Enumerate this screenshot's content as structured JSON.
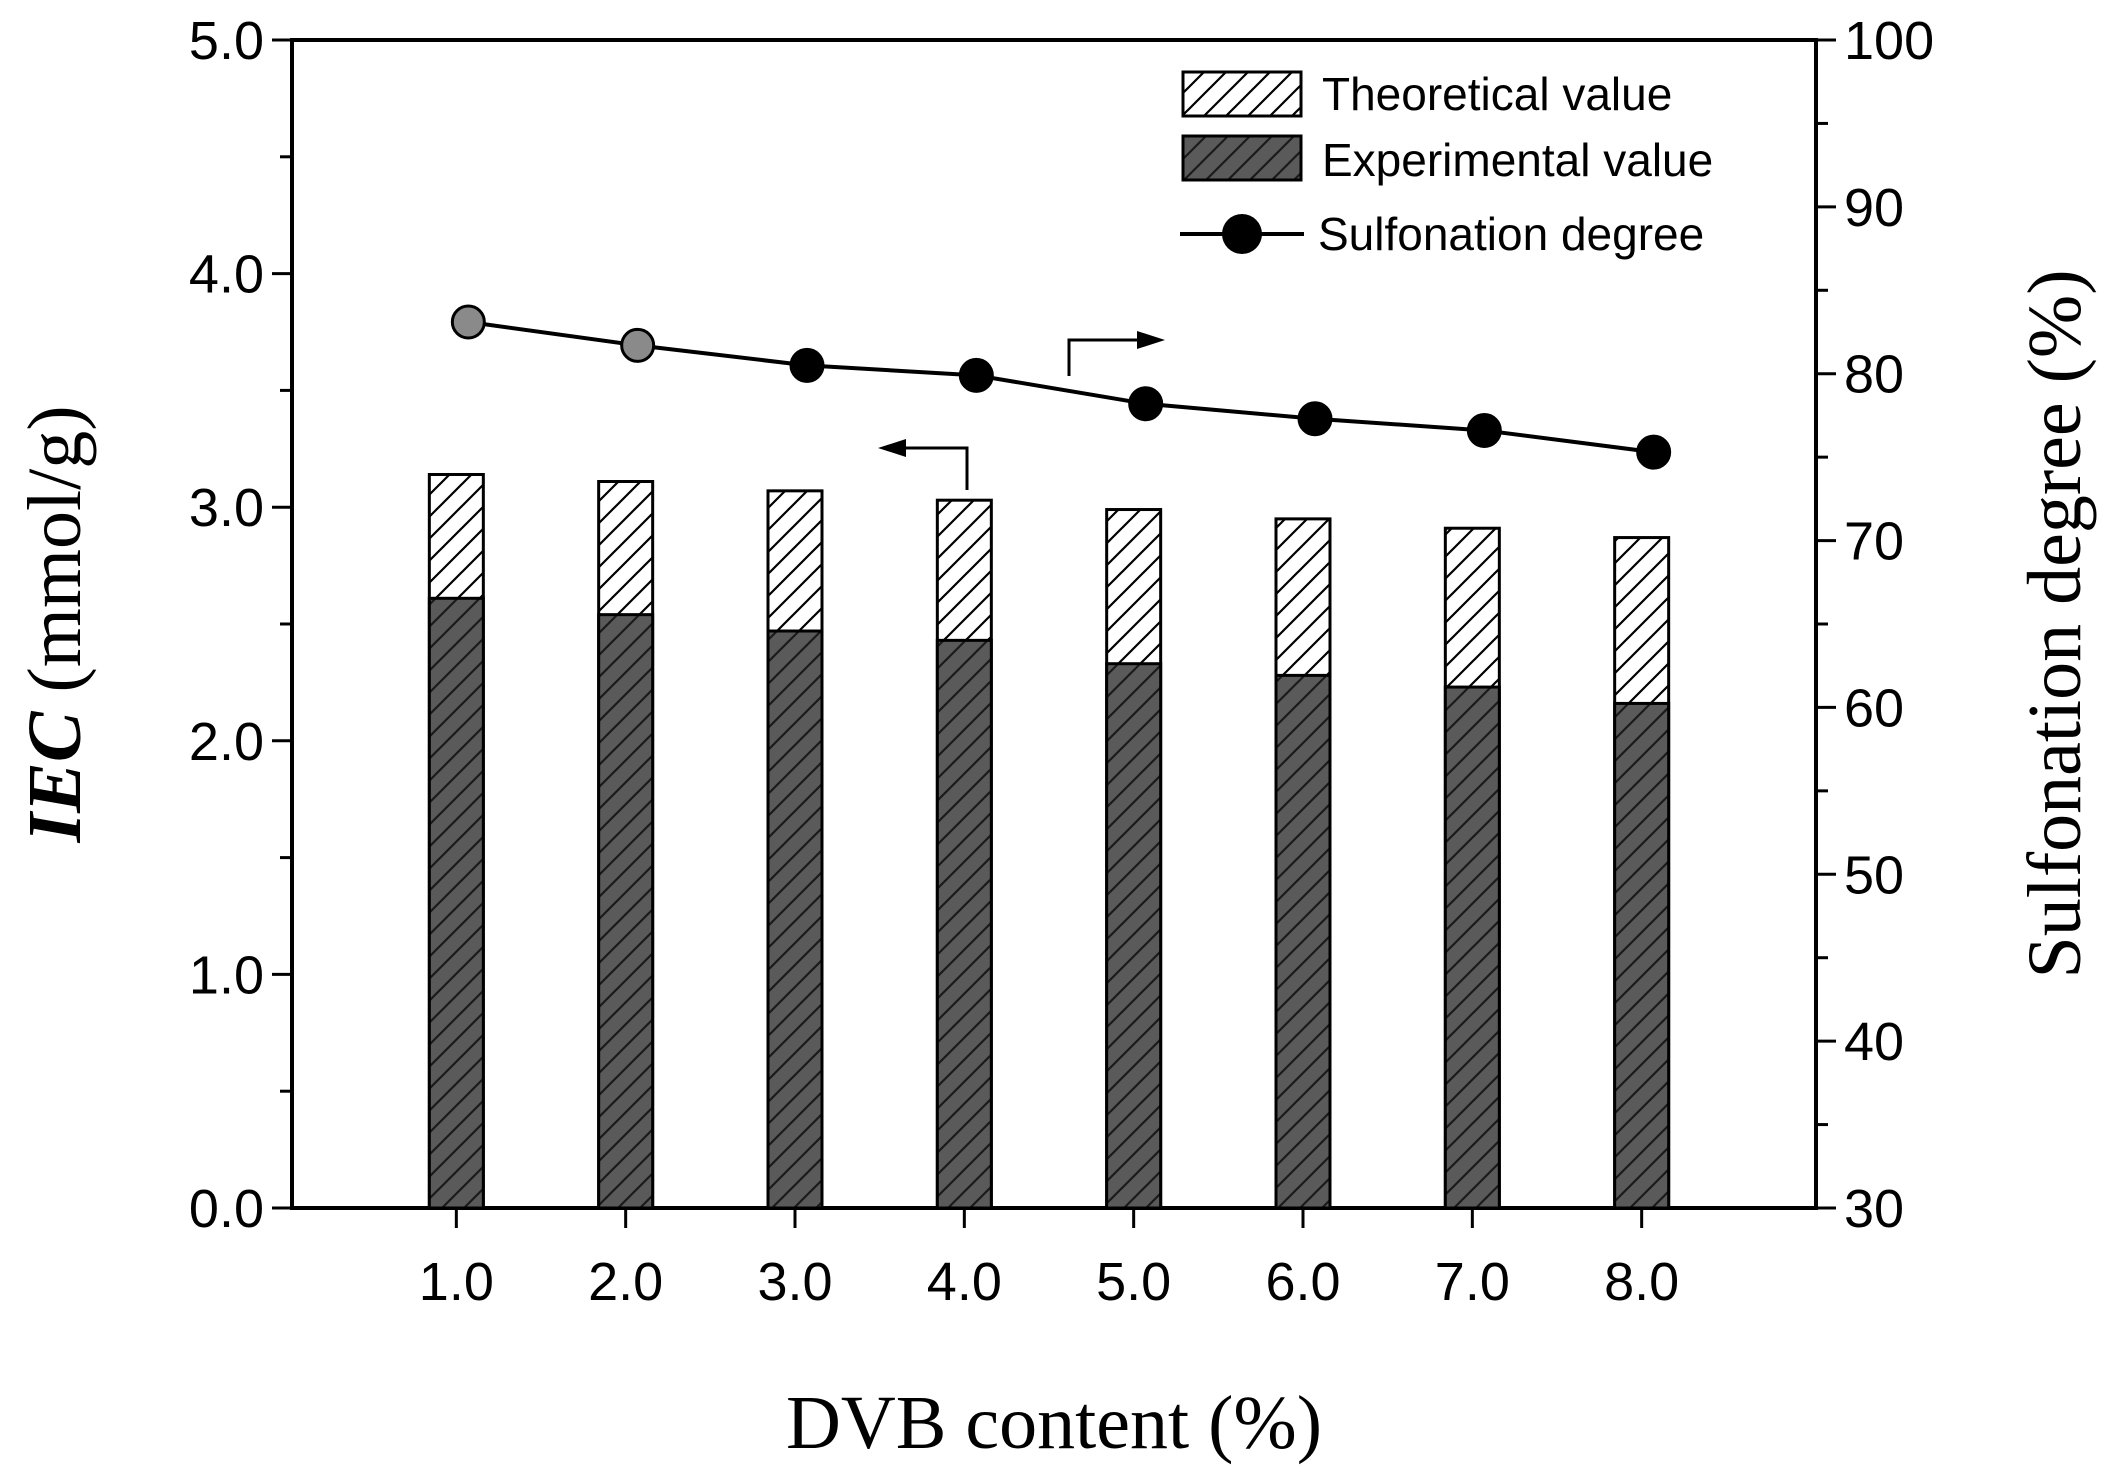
{
  "chart_data": {
    "type": "bar",
    "secondary_type": "line",
    "categories": [
      "1.0",
      "2.0",
      "3.0",
      "4.0",
      "5.0",
      "6.0",
      "7.0",
      "8.0"
    ],
    "series": [
      {
        "name": "Theoretical value",
        "axis": "left",
        "kind": "bar",
        "values": [
          3.14,
          3.11,
          3.07,
          3.03,
          2.99,
          2.95,
          2.91,
          2.87
        ]
      },
      {
        "name": "Experimental value",
        "axis": "left",
        "kind": "bar",
        "values": [
          2.61,
          2.54,
          2.47,
          2.43,
          2.33,
          2.28,
          2.23,
          2.16
        ]
      },
      {
        "name": "Sulfonation degree",
        "axis": "right",
        "kind": "line",
        "values": [
          83.1,
          81.7,
          80.5,
          79.9,
          78.2,
          77.3,
          76.6,
          75.3
        ]
      }
    ],
    "xlabel": "DVB content (%)",
    "ylabel": {
      "italic": "IEC",
      "rest": " (mmol/g)"
    },
    "y2label": "Sulfonation degree (%)",
    "ylim": [
      0,
      5
    ],
    "y2lim": [
      30,
      100
    ],
    "yticks": [
      "0.0",
      "1.0",
      "2.0",
      "3.0",
      "4.0",
      "5.0"
    ],
    "y2ticks": [
      "30",
      "40",
      "50",
      "60",
      "70",
      "80",
      "90",
      "100"
    ],
    "legend_position": "top-right",
    "grid": false,
    "colors": {
      "theoretical_fill": "#ffffff",
      "experimental_fill": "#555555",
      "line": "#000000",
      "marker": "#000000"
    }
  }
}
